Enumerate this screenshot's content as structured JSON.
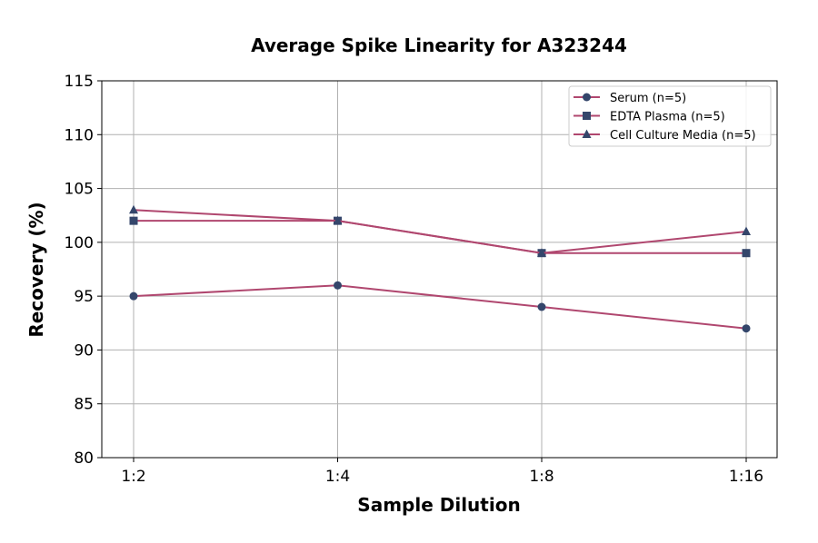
{
  "chart_data": {
    "type": "line",
    "title": "Average Spike Linearity for A323244",
    "xlabel": "Sample Dilution",
    "ylabel": "Recovery (%)",
    "categories": [
      "1:2",
      "1:4",
      "1:8",
      "1:16"
    ],
    "ylim": [
      80,
      115
    ],
    "yticks": [
      80,
      85,
      90,
      95,
      100,
      105,
      110,
      115
    ],
    "grid": true,
    "legend_position": "top-right",
    "line_color": "#b0476f",
    "marker_color": "#34466b",
    "series": [
      {
        "name": "Serum (n=5)",
        "marker": "circle",
        "values": [
          95,
          96,
          94,
          92
        ]
      },
      {
        "name": "EDTA Plasma (n=5)",
        "marker": "square",
        "values": [
          102,
          102,
          99,
          99
        ]
      },
      {
        "name": "Cell Culture Media (n=5)",
        "marker": "triangle",
        "values": [
          103,
          102,
          99,
          101
        ]
      }
    ]
  }
}
